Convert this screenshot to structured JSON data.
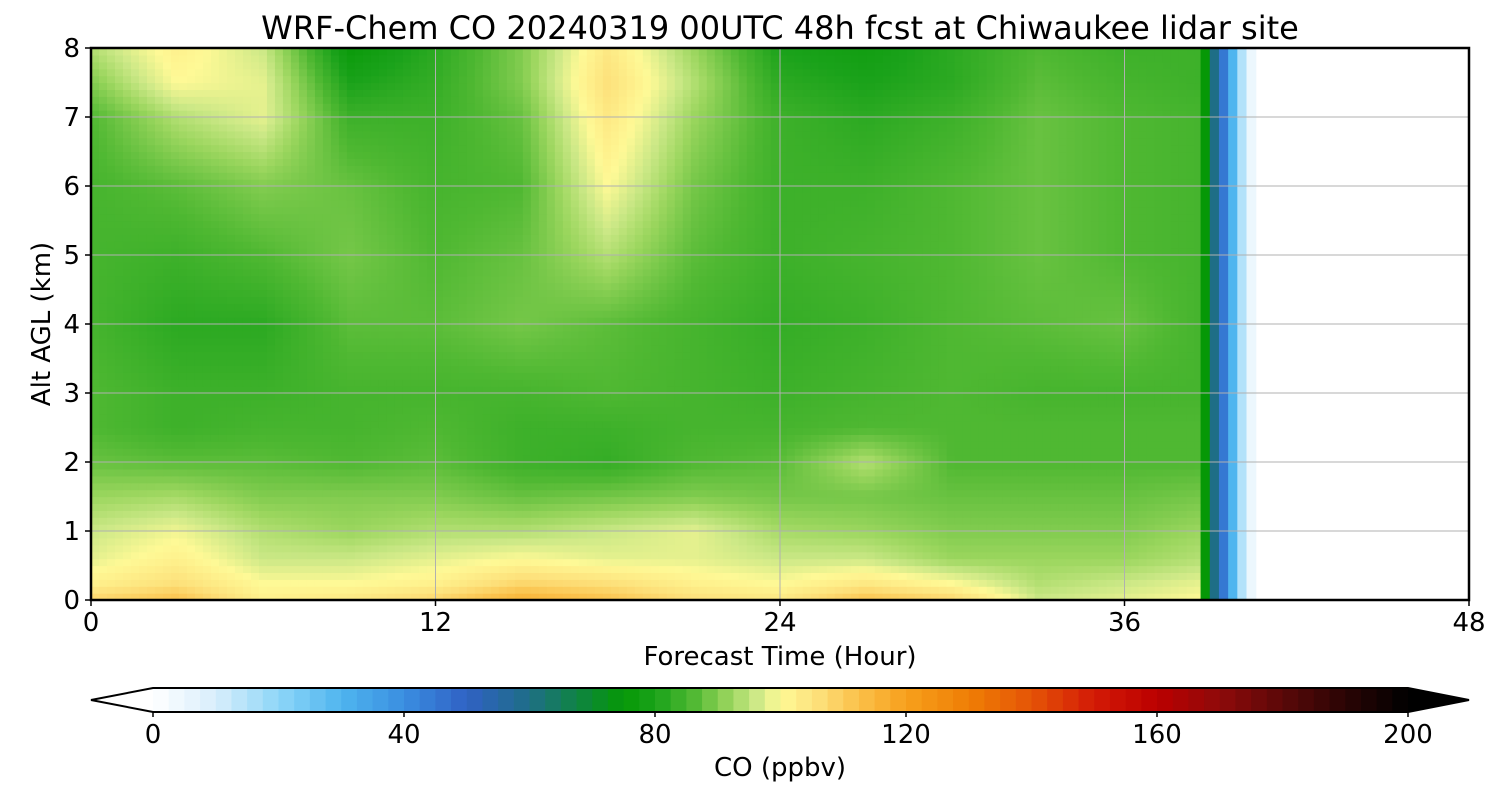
{
  "chart_data": {
    "type": "heatmap",
    "title": "WRF-Chem CO  20240319 00UTC 48h fcst at Chiwaukee lidar site",
    "xlabel": "Forecast Time (Hour)",
    "ylabel": "Alt AGL (km)",
    "xlim": [
      0,
      48
    ],
    "ylim": [
      0,
      8
    ],
    "x_ticks": [
      "0",
      "12",
      "24",
      "36",
      "48"
    ],
    "y_ticks": [
      "0",
      "1",
      "2",
      "3",
      "4",
      "5",
      "6",
      "7",
      "8"
    ],
    "grid": true,
    "data_extent_hours": [
      0,
      39
    ],
    "x_hours": [
      0,
      3,
      6,
      9,
      12,
      15,
      18,
      21,
      24,
      27,
      30,
      33,
      36,
      38.5
    ],
    "y_km": [
      0,
      0.25,
      0.6,
      1.0,
      1.5,
      2.0,
      2.5,
      3.0,
      4.0,
      5.0,
      6.0,
      7.0,
      7.5,
      8.0
    ],
    "values_ppbv": [
      [
        108,
        112,
        102,
        104,
        108,
        116,
        112,
        106,
        104,
        112,
        108,
        96,
        98,
        100
      ],
      [
        102,
        106,
        100,
        100,
        102,
        108,
        106,
        102,
        100,
        104,
        100,
        94,
        96,
        98
      ],
      [
        98,
        102,
        96,
        96,
        98,
        100,
        98,
        98,
        96,
        96,
        92,
        92,
        92,
        94
      ],
      [
        96,
        99,
        94,
        92,
        94,
        94,
        96,
        98,
        93,
        92,
        90,
        90,
        90,
        92
      ],
      [
        92,
        93,
        90,
        90,
        90,
        88,
        89,
        90,
        89,
        89,
        88,
        88,
        88,
        89
      ],
      [
        88,
        87,
        87,
        86,
        87,
        84,
        83,
        86,
        87,
        94,
        86,
        86,
        86,
        86
      ],
      [
        86,
        84,
        85,
        85,
        86,
        84,
        84,
        85,
        85,
        86,
        86,
        86,
        86,
        86
      ],
      [
        86,
        84,
        84,
        85,
        85,
        85,
        86,
        85,
        84,
        85,
        86,
        85,
        85,
        85
      ],
      [
        85,
        82,
        82,
        87,
        87,
        89,
        87,
        85,
        83,
        84,
        86,
        87,
        88,
        85
      ],
      [
        85,
        84,
        86,
        89,
        86,
        88,
        94,
        87,
        84,
        85,
        86,
        88,
        86,
        85
      ],
      [
        85,
        87,
        90,
        88,
        85,
        86,
        100,
        89,
        84,
        84,
        86,
        88,
        86,
        85
      ],
      [
        86,
        94,
        98,
        84,
        84,
        88,
        104,
        92,
        84,
        82,
        84,
        88,
        86,
        85
      ],
      [
        90,
        100,
        98,
        80,
        83,
        90,
        106,
        94,
        82,
        80,
        82,
        87,
        85,
        84
      ],
      [
        94,
        102,
        96,
        76,
        82,
        90,
        104,
        92,
        80,
        78,
        82,
        86,
        84,
        84
      ]
    ],
    "colorbar": {
      "label": "CO  (ppbv)",
      "range": [
        0,
        200
      ],
      "ticks": [
        "0",
        "40",
        "80",
        "120",
        "160",
        "200"
      ],
      "extend": "both",
      "stops": [
        [
          0,
          "#ffffff"
        ],
        [
          10,
          "#d8eefb"
        ],
        [
          20,
          "#8ed6f8"
        ],
        [
          30,
          "#4fb5ef"
        ],
        [
          40,
          "#3a8ee0"
        ],
        [
          50,
          "#3061c4"
        ],
        [
          60,
          "#1e6e86"
        ],
        [
          70,
          "#0b8a2e"
        ],
        [
          75,
          "#069806"
        ],
        [
          80,
          "#1aa21a"
        ],
        [
          86,
          "#4fb832"
        ],
        [
          92,
          "#9bd65e"
        ],
        [
          96,
          "#cbe886"
        ],
        [
          100,
          "#fef996"
        ],
        [
          106,
          "#fde07a"
        ],
        [
          112,
          "#fbc24c"
        ],
        [
          120,
          "#f7a01c"
        ],
        [
          130,
          "#ef7e05"
        ],
        [
          140,
          "#e55406"
        ],
        [
          150,
          "#d31a06"
        ],
        [
          160,
          "#bb0000"
        ],
        [
          170,
          "#8e0a0a"
        ],
        [
          180,
          "#5a0808"
        ],
        [
          190,
          "#2a0404"
        ],
        [
          200,
          "#000000"
        ]
      ]
    }
  }
}
